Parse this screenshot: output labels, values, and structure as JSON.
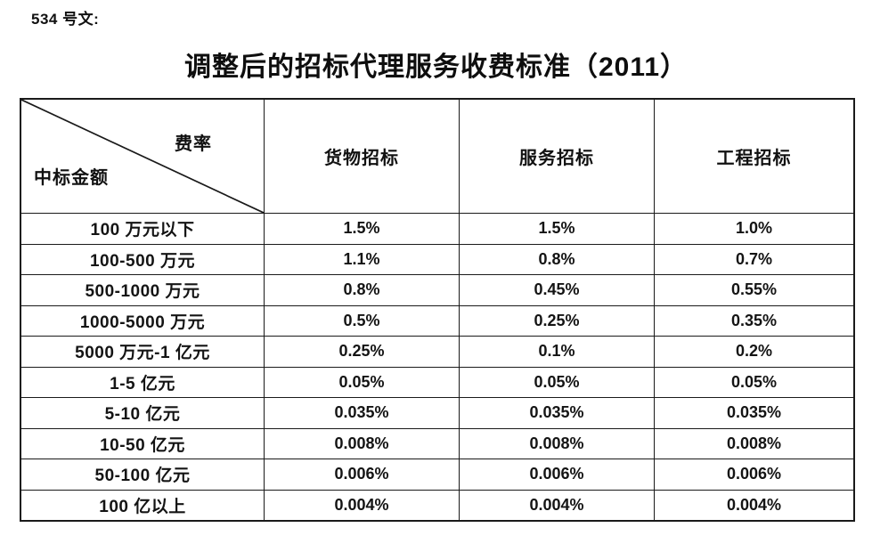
{
  "doc_label": "534 号文:",
  "title": "调整后的招标代理服务收费标准（2011）",
  "table": {
    "corner": {
      "top_right": "费率",
      "bottom_left": "中标金额"
    },
    "columns": [
      "货物招标",
      "服务招标",
      "工程招标"
    ],
    "rows": [
      {
        "label": "100 万元以下",
        "values": [
          "1.5%",
          "1.5%",
          "1.0%"
        ]
      },
      {
        "label": "100-500 万元",
        "values": [
          "1.1%",
          "0.8%",
          "0.7%"
        ]
      },
      {
        "label": "500-1000 万元",
        "values": [
          "0.8%",
          "0.45%",
          "0.55%"
        ]
      },
      {
        "label": "1000-5000 万元",
        "values": [
          "0.5%",
          "0.25%",
          "0.35%"
        ]
      },
      {
        "label": "5000 万元-1 亿元",
        "values": [
          "0.25%",
          "0.1%",
          "0.2%"
        ]
      },
      {
        "label": "1-5 亿元",
        "values": [
          "0.05%",
          "0.05%",
          "0.05%"
        ]
      },
      {
        "label": "5-10 亿元",
        "values": [
          "0.035%",
          "0.035%",
          "0.035%"
        ]
      },
      {
        "label": "10-50 亿元",
        "values": [
          "0.008%",
          "0.008%",
          "0.008%"
        ]
      },
      {
        "label": "50-100 亿元",
        "values": [
          "0.006%",
          "0.006%",
          "0.006%"
        ]
      },
      {
        "label": "100 亿以上",
        "values": [
          "0.004%",
          "0.004%",
          "0.004%"
        ]
      }
    ]
  }
}
